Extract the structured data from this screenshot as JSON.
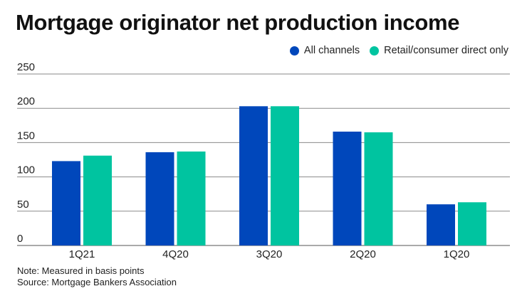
{
  "title": "Mortgage originator net production income",
  "legend": [
    {
      "name": "All channels",
      "color": "#0047bb"
    },
    {
      "name": "Retail/consumer direct only",
      "color": "#00c4a0"
    }
  ],
  "notes": {
    "line1": "Note: Measured in basis points",
    "line2": "Source: Mortgage Bankers Association"
  },
  "chart_data": {
    "type": "bar",
    "title": "Mortgage originator net production income",
    "categories": [
      "1Q21",
      "4Q20",
      "3Q20",
      "2Q20",
      "1Q20"
    ],
    "series": [
      {
        "name": "All channels",
        "color": "#0047bb",
        "values": [
          123,
          136,
          203,
          166,
          60
        ]
      },
      {
        "name": "Retail/consumer direct only",
        "color": "#00c4a0",
        "values": [
          131,
          137,
          203,
          165,
          63
        ]
      }
    ],
    "yticks": [
      0,
      50,
      100,
      150,
      200,
      250
    ],
    "ylim": [
      0,
      250
    ],
    "xlabel": "",
    "ylabel": "",
    "grid": true,
    "legend_position": "top-right"
  }
}
